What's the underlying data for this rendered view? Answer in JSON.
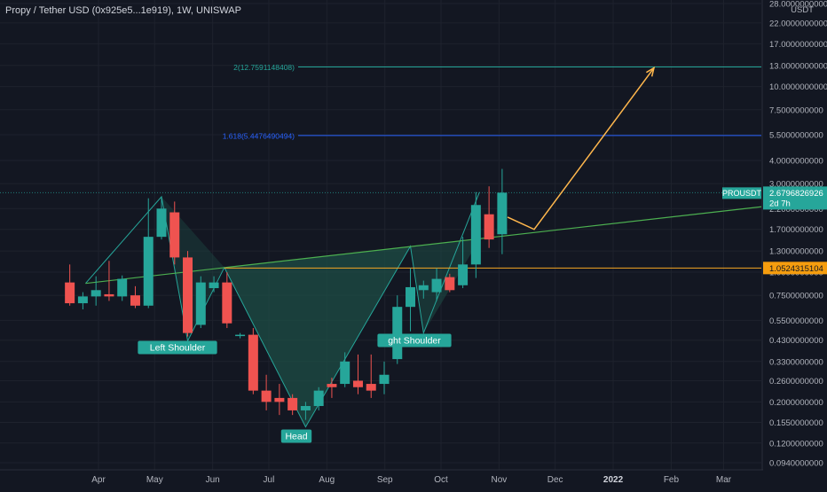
{
  "header": {
    "title": "Propy / Tether USD (0x925e5...1e919), 1W, UNISWAP"
  },
  "colors": {
    "background": "#131722",
    "up_candle": "#26a69a",
    "down_candle": "#ef5350",
    "neckline": "#4caf50",
    "neckline_h": "#f5a623",
    "fib_2": "#26a69a",
    "fib_1618": "#2962ff",
    "projection": "#ffb74d",
    "pattern_fill": "#1e4d45",
    "price_label": "#26a69a",
    "level_label": "#f59d0e"
  },
  "chart_data": {
    "type": "candlestick",
    "scale": "log",
    "currency_label": "USDT",
    "x_ticks": [
      "Apr",
      "May",
      "Jun",
      "Jul",
      "Aug",
      "Sep",
      "Oct",
      "Nov",
      "Dec",
      "2022",
      "Feb",
      "Mar"
    ],
    "y_ticks": [
      "28.0000000000",
      "22.0000000000",
      "17.0000000000",
      "13.0000000000",
      "10.0000000000",
      "7.5000000000",
      "5.5000000000",
      "4.0000000000",
      "3.0000000000",
      "2.2000000000",
      "1.7000000000",
      "1.3000000000",
      "1.0000000000",
      "0.7500000000",
      "0.5500000000",
      "0.4300000000",
      "0.3300000000",
      "0.2600000000",
      "0.2000000000",
      "0.1550000000",
      "0.1200000000",
      "0.0940000000"
    ],
    "y_tick_values": [
      28,
      22,
      17,
      13,
      10,
      7.5,
      5.5,
      4,
      3,
      2.2,
      1.7,
      1.3,
      1.0,
      0.75,
      0.55,
      0.43,
      0.33,
      0.26,
      0.2,
      0.155,
      0.12,
      0.094
    ],
    "candles": [
      {
        "date": "2021-03-15",
        "o": 0.88,
        "h": 1.1,
        "l": 0.66,
        "c": 0.68
      },
      {
        "date": "2021-03-22",
        "o": 0.68,
        "h": 0.78,
        "l": 0.63,
        "c": 0.74
      },
      {
        "date": "2021-03-29",
        "o": 0.74,
        "h": 0.95,
        "l": 0.66,
        "c": 0.8
      },
      {
        "date": "2021-04-05",
        "o": 0.76,
        "h": 1.15,
        "l": 0.7,
        "c": 0.74
      },
      {
        "date": "2021-04-12",
        "o": 0.74,
        "h": 0.96,
        "l": 0.7,
        "c": 0.92
      },
      {
        "date": "2021-04-19",
        "o": 0.75,
        "h": 0.84,
        "l": 0.64,
        "c": 0.66
      },
      {
        "date": "2021-04-26",
        "o": 0.66,
        "h": 2.5,
        "l": 0.64,
        "c": 1.55
      },
      {
        "date": "2021-05-03",
        "o": 1.55,
        "h": 2.55,
        "l": 1.5,
        "c": 2.2
      },
      {
        "date": "2021-05-10",
        "o": 2.1,
        "h": 2.4,
        "l": 1.1,
        "c": 1.2
      },
      {
        "date": "2021-05-17",
        "o": 1.2,
        "h": 1.3,
        "l": 0.45,
        "c": 0.47
      },
      {
        "date": "2021-05-24",
        "o": 0.52,
        "h": 0.95,
        "l": 0.5,
        "c": 0.88
      },
      {
        "date": "2021-05-31",
        "o": 0.82,
        "h": 0.95,
        "l": 0.78,
        "c": 0.88
      },
      {
        "date": "2021-06-07",
        "o": 0.88,
        "h": 1.0,
        "l": 0.5,
        "c": 0.53
      },
      {
        "date": "2021-06-14",
        "o": 0.46,
        "h": 0.47,
        "l": 0.44,
        "c": 0.46
      },
      {
        "date": "2021-06-21",
        "o": 0.46,
        "h": 0.5,
        "l": 0.22,
        "c": 0.23
      },
      {
        "date": "2021-06-28",
        "o": 0.23,
        "h": 0.28,
        "l": 0.18,
        "c": 0.2
      },
      {
        "date": "2021-07-05",
        "o": 0.21,
        "h": 0.25,
        "l": 0.17,
        "c": 0.2
      },
      {
        "date": "2021-07-12",
        "o": 0.21,
        "h": 0.22,
        "l": 0.17,
        "c": 0.18
      },
      {
        "date": "2021-07-19",
        "o": 0.18,
        "h": 0.2,
        "l": 0.16,
        "c": 0.19
      },
      {
        "date": "2021-07-26",
        "o": 0.19,
        "h": 0.24,
        "l": 0.18,
        "c": 0.23
      },
      {
        "date": "2021-08-02",
        "o": 0.25,
        "h": 0.27,
        "l": 0.21,
        "c": 0.24
      },
      {
        "date": "2021-08-09",
        "o": 0.25,
        "h": 0.37,
        "l": 0.24,
        "c": 0.33
      },
      {
        "date": "2021-08-16",
        "o": 0.26,
        "h": 0.36,
        "l": 0.22,
        "c": 0.24
      },
      {
        "date": "2021-08-23",
        "o": 0.25,
        "h": 0.36,
        "l": 0.21,
        "c": 0.23
      },
      {
        "date": "2021-08-30",
        "o": 0.25,
        "h": 0.33,
        "l": 0.22,
        "c": 0.28
      },
      {
        "date": "2021-09-06",
        "o": 0.34,
        "h": 0.75,
        "l": 0.32,
        "c": 0.65
      },
      {
        "date": "2021-09-13",
        "o": 0.65,
        "h": 1.05,
        "l": 0.48,
        "c": 0.83
      },
      {
        "date": "2021-09-20",
        "o": 0.8,
        "h": 0.9,
        "l": 0.72,
        "c": 0.85
      },
      {
        "date": "2021-09-27",
        "o": 0.78,
        "h": 1.05,
        "l": 0.7,
        "c": 0.92
      },
      {
        "date": "2021-10-04",
        "o": 0.94,
        "h": 0.98,
        "l": 0.78,
        "c": 0.8
      },
      {
        "date": "2021-10-11",
        "o": 0.85,
        "h": 1.55,
        "l": 0.82,
        "c": 1.1
      },
      {
        "date": "2021-10-18",
        "o": 1.1,
        "h": 2.7,
        "l": 0.93,
        "c": 2.3
      },
      {
        "date": "2021-10-25",
        "o": 2.05,
        "h": 2.9,
        "l": 1.35,
        "c": 1.5
      },
      {
        "date": "2021-11-01",
        "o": 1.6,
        "h": 3.6,
        "l": 1.25,
        "c": 2.68
      }
    ],
    "current_price": {
      "symbol": "PROUSDT",
      "value": "2.6796826926",
      "countdown": "2d 7h"
    },
    "horizontal_level": {
      "value": "1.0524315104"
    },
    "fib_levels": [
      {
        "label": "2(12.7591148408)",
        "value": 12.7591148408
      },
      {
        "label": "1.618(5.4476490494)",
        "value": 5.4476490494
      }
    ],
    "annotations": [
      {
        "text": "Left Shoulder"
      },
      {
        "text": "Head"
      },
      {
        "text": "ght Shoulder"
      }
    ]
  }
}
